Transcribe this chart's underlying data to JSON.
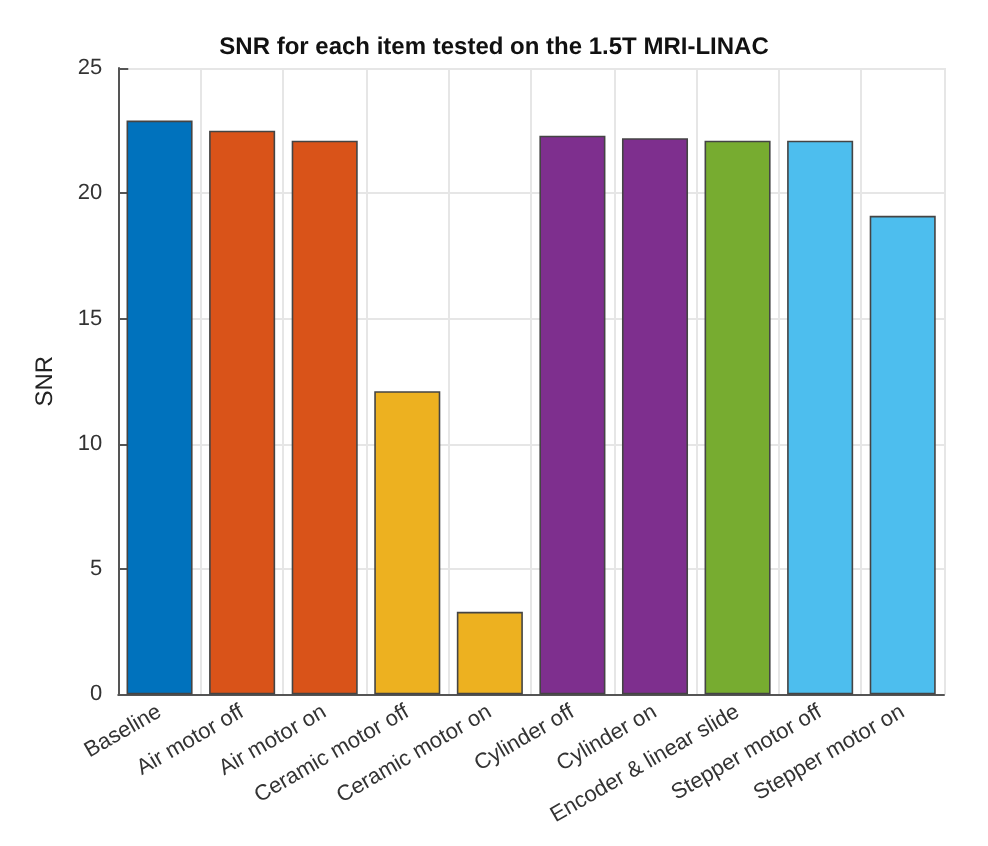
{
  "chart_data": {
    "type": "bar",
    "title": "SNR for each item tested on the 1.5T MRI-LINAC",
    "ylabel": "SNR",
    "categories": [
      "Baseline",
      "Air motor off",
      "Air motor on",
      "Ceramic motor off",
      "Ceramic motor on",
      "Cylinder off",
      "Cylinder on",
      "Encoder & linear slide",
      "Stepper motor off",
      "Stepper motor on"
    ],
    "values": [
      22.9,
      22.5,
      22.1,
      12.1,
      3.3,
      22.3,
      22.2,
      22.1,
      22.1,
      19.1
    ],
    "colors": [
      "#0072bd",
      "#d95319",
      "#d95319",
      "#edb120",
      "#edb120",
      "#7e2f8e",
      "#7e2f8e",
      "#77ac30",
      "#4dbeee",
      "#4dbeee"
    ],
    "ylim": [
      0,
      25
    ],
    "yticks": [
      0,
      5,
      10,
      15,
      20,
      25
    ],
    "grid": true
  }
}
